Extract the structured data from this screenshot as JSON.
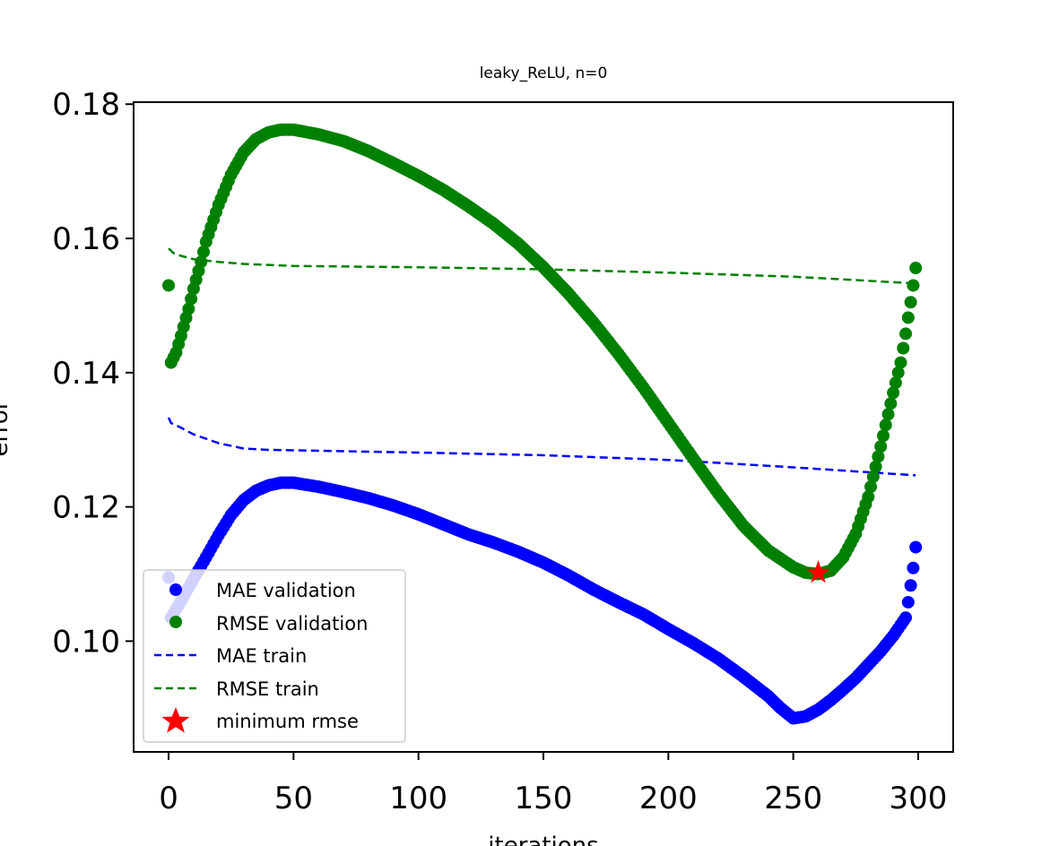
{
  "chart_data": {
    "type": "scatter",
    "title": "leaky_ReLU, n=0",
    "xlabel": "iterations",
    "ylabel": "error",
    "xlim": [
      -14,
      314
    ],
    "ylim": [
      0.0835,
      0.1803
    ],
    "xticks": [
      0,
      50,
      100,
      150,
      200,
      250,
      300
    ],
    "yticks": [
      0.1,
      0.12,
      0.14,
      0.16,
      0.18
    ],
    "ytick_labels": [
      "0.10",
      "0.12",
      "0.14",
      "0.16",
      "0.18"
    ],
    "grid": false,
    "legend_position": "lower-left",
    "colors": {
      "mae": "#0000ff",
      "rmse": "#008000",
      "marker": "#ff0000"
    },
    "series": [
      {
        "name": "MAE validation",
        "style": "points",
        "color": "#0000ff",
        "outliers": [
          {
            "x": 0,
            "y": 0.1095
          },
          {
            "x": 296,
            "y": 0.1058
          },
          {
            "x": 297,
            "y": 0.1083
          },
          {
            "x": 298,
            "y": 0.1109
          },
          {
            "x": 299,
            "y": 0.114
          }
        ],
        "anchors": [
          [
            1,
            0.1035
          ],
          [
            5,
            0.106
          ],
          [
            10,
            0.1093
          ],
          [
            15,
            0.1125
          ],
          [
            20,
            0.1158
          ],
          [
            25,
            0.1188
          ],
          [
            30,
            0.121
          ],
          [
            35,
            0.1224
          ],
          [
            40,
            0.1232
          ],
          [
            45,
            0.1236
          ],
          [
            50,
            0.1236
          ],
          [
            60,
            0.123
          ],
          [
            70,
            0.1222
          ],
          [
            80,
            0.1213
          ],
          [
            90,
            0.1202
          ],
          [
            100,
            0.1189
          ],
          [
            110,
            0.1174
          ],
          [
            120,
            0.1159
          ],
          [
            130,
            0.1147
          ],
          [
            140,
            0.1133
          ],
          [
            150,
            0.1117
          ],
          [
            160,
            0.1098
          ],
          [
            170,
            0.1077
          ],
          [
            180,
            0.1058
          ],
          [
            190,
            0.104
          ],
          [
            200,
            0.1018
          ],
          [
            210,
            0.0997
          ],
          [
            220,
            0.0974
          ],
          [
            230,
            0.0947
          ],
          [
            240,
            0.0918
          ],
          [
            245,
            0.09
          ],
          [
            250,
            0.0885
          ],
          [
            255,
            0.0888
          ],
          [
            260,
            0.0898
          ],
          [
            265,
            0.0912
          ],
          [
            270,
            0.0928
          ],
          [
            275,
            0.0945
          ],
          [
            280,
            0.0965
          ],
          [
            285,
            0.0985
          ],
          [
            290,
            0.1008
          ],
          [
            295,
            0.1035
          ]
        ]
      },
      {
        "name": "RMSE validation",
        "style": "points",
        "color": "#008000",
        "outliers": [
          {
            "x": 0,
            "y": 0.153
          },
          {
            "x": 297,
            "y": 0.1505
          },
          {
            "x": 298,
            "y": 0.153
          },
          {
            "x": 299,
            "y": 0.1556
          }
        ],
        "anchors": [
          [
            1,
            0.1415
          ],
          [
            3,
            0.143
          ],
          [
            5,
            0.1455
          ],
          [
            8,
            0.1495
          ],
          [
            10,
            0.1525
          ],
          [
            13,
            0.1565
          ],
          [
            15,
            0.1595
          ],
          [
            20,
            0.165
          ],
          [
            25,
            0.1695
          ],
          [
            30,
            0.1728
          ],
          [
            35,
            0.1748
          ],
          [
            40,
            0.1758
          ],
          [
            45,
            0.1762
          ],
          [
            50,
            0.1762
          ],
          [
            60,
            0.1755
          ],
          [
            70,
            0.1745
          ],
          [
            80,
            0.173
          ],
          [
            90,
            0.1712
          ],
          [
            100,
            0.1693
          ],
          [
            110,
            0.1672
          ],
          [
            120,
            0.1648
          ],
          [
            130,
            0.1622
          ],
          [
            140,
            0.1592
          ],
          [
            150,
            0.1557
          ],
          [
            160,
            0.1518
          ],
          [
            170,
            0.1475
          ],
          [
            180,
            0.1428
          ],
          [
            190,
            0.1378
          ],
          [
            200,
            0.1325
          ],
          [
            210,
            0.1272
          ],
          [
            220,
            0.122
          ],
          [
            230,
            0.1172
          ],
          [
            240,
            0.1135
          ],
          [
            250,
            0.111
          ],
          [
            255,
            0.1102
          ],
          [
            260,
            0.11
          ],
          [
            265,
            0.1105
          ],
          [
            270,
            0.1125
          ],
          [
            275,
            0.116
          ],
          [
            280,
            0.1215
          ],
          [
            285,
            0.129
          ],
          [
            290,
            0.137
          ],
          [
            293,
            0.1415
          ],
          [
            295,
            0.1458
          ],
          [
            296,
            0.1482
          ]
        ]
      },
      {
        "name": "MAE train",
        "style": "dashed",
        "color": "#0000ff",
        "points": [
          [
            0,
            0.1333
          ],
          [
            1,
            0.1325
          ],
          [
            5,
            0.1318
          ],
          [
            10,
            0.1308
          ],
          [
            20,
            0.1295
          ],
          [
            30,
            0.1287
          ],
          [
            40,
            0.1285
          ],
          [
            100,
            0.1281
          ],
          [
            150,
            0.1277
          ],
          [
            200,
            0.127
          ],
          [
            250,
            0.1259
          ],
          [
            299,
            0.1247
          ]
        ]
      },
      {
        "name": "RMSE train",
        "style": "dashed",
        "color": "#008000",
        "points": [
          [
            0,
            0.1585
          ],
          [
            2,
            0.1578
          ],
          [
            5,
            0.1574
          ],
          [
            10,
            0.1569
          ],
          [
            20,
            0.1565
          ],
          [
            30,
            0.1562
          ],
          [
            50,
            0.1559
          ],
          [
            100,
            0.1557
          ],
          [
            150,
            0.1554
          ],
          [
            200,
            0.1549
          ],
          [
            250,
            0.1543
          ],
          [
            299,
            0.1533
          ]
        ]
      }
    ],
    "minimum": {
      "name": "minimum rmse",
      "x": 260,
      "y": 0.1102
    }
  }
}
